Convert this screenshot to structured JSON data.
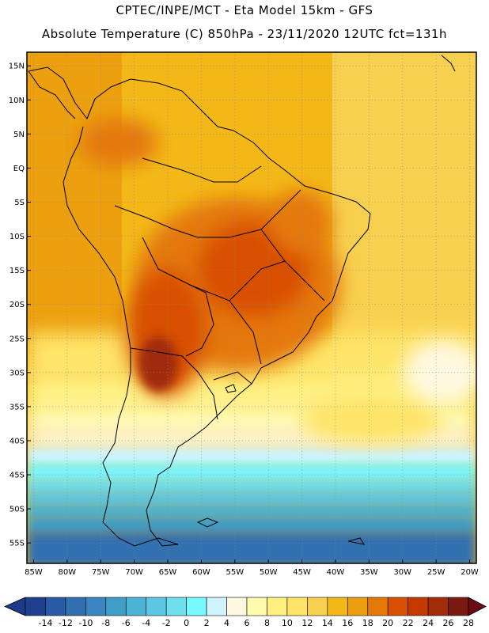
{
  "header": {
    "line1": "CPTEC/INPE/MCT -  Eta Model 15km - GFS",
    "line2": "Absolute Temperature (C) 850hPa - 23/11/2020 12UTC fct=131h"
  },
  "map": {
    "lon_range": [
      -86,
      -19
    ],
    "lat_range": [
      -58,
      17
    ],
    "lat_ticks": [
      {
        "v": 15,
        "t": "15N"
      },
      {
        "v": 10,
        "t": "10N"
      },
      {
        "v": 5,
        "t": "5N"
      },
      {
        "v": 0,
        "t": "EQ"
      },
      {
        "v": -5,
        "t": "5S"
      },
      {
        "v": -10,
        "t": "10S"
      },
      {
        "v": -15,
        "t": "15S"
      },
      {
        "v": -20,
        "t": "20S"
      },
      {
        "v": -25,
        "t": "25S"
      },
      {
        "v": -30,
        "t": "30S"
      },
      {
        "v": -35,
        "t": "35S"
      },
      {
        "v": -40,
        "t": "40S"
      },
      {
        "v": -45,
        "t": "45S"
      },
      {
        "v": -50,
        "t": "50S"
      },
      {
        "v": -55,
        "t": "55S"
      }
    ],
    "lon_ticks": [
      {
        "v": -85,
        "t": "85W"
      },
      {
        "v": -80,
        "t": "80W"
      },
      {
        "v": -75,
        "t": "75W"
      },
      {
        "v": -70,
        "t": "70W"
      },
      {
        "v": -65,
        "t": "65W"
      },
      {
        "v": -60,
        "t": "60W"
      },
      {
        "v": -55,
        "t": "55W"
      },
      {
        "v": -50,
        "t": "50W"
      },
      {
        "v": -45,
        "t": "45W"
      },
      {
        "v": -40,
        "t": "40W"
      },
      {
        "v": -35,
        "t": "35W"
      },
      {
        "v": -30,
        "t": "30W"
      },
      {
        "v": -25,
        "t": "25W"
      },
      {
        "v": -20,
        "t": "20W"
      }
    ]
  },
  "colorbar": {
    "labels": [
      "-14",
      "-12",
      "-10",
      "-8",
      "-6",
      "-4",
      "-2",
      "0",
      "2",
      "4",
      "6",
      "8",
      "10",
      "12",
      "14",
      "16",
      "18",
      "20",
      "22",
      "24",
      "26",
      "28"
    ],
    "under_color": "#1e3a8a",
    "over_color": "#6a0a14",
    "colors": [
      "#1f3f8f",
      "#2a5aa6",
      "#3070b0",
      "#3a86c0",
      "#3f9ec8",
      "#4cb4d6",
      "#5cc8e4",
      "#6fe0f0",
      "#78f8ff",
      "#d0f4ff",
      "#fff8e0",
      "#fffcb0",
      "#fff080",
      "#fee468",
      "#f8d050",
      "#f3b818",
      "#eca010",
      "#e47808",
      "#d85000",
      "#c43a00",
      "#a02c08",
      "#7a1a10"
    ]
  }
}
